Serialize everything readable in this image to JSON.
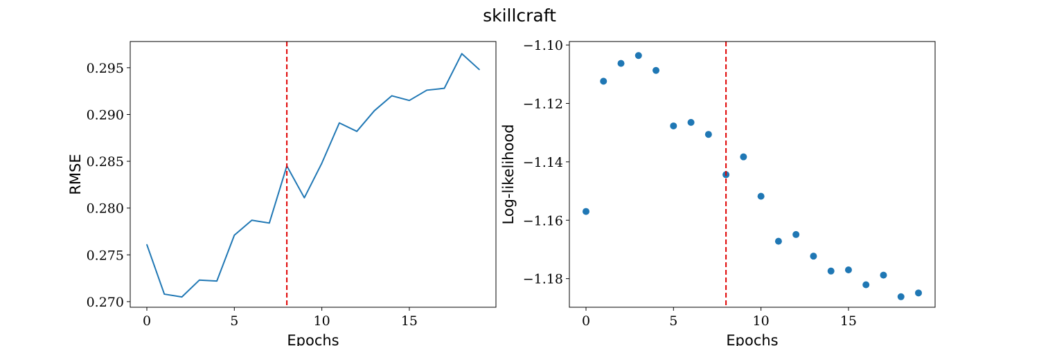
{
  "figure": {
    "title": "skillcraft"
  },
  "chart_data": [
    {
      "type": "line",
      "xlabel": "Epochs",
      "ylabel": "RMSE",
      "x": [
        0,
        1,
        2,
        3,
        4,
        5,
        6,
        7,
        8,
        9,
        10,
        11,
        12,
        13,
        14,
        15,
        16,
        17,
        18,
        19
      ],
      "series": [
        {
          "values": [
            0.2761,
            0.2708,
            0.2705,
            0.2723,
            0.2722,
            0.2771,
            0.2787,
            0.2784,
            0.2845,
            0.2811,
            0.2848,
            0.2891,
            0.2882,
            0.2904,
            0.292,
            0.2915,
            0.2926,
            0.2928,
            0.2965,
            0.2948
          ],
          "color": "#1f77b4"
        }
      ],
      "vline": {
        "x": 8,
        "color": "#e00000",
        "style": "dashed"
      },
      "xlim": [
        -0.95,
        19.95
      ],
      "ylim": [
        0.2694,
        0.2978
      ],
      "xticks": [
        0,
        5,
        10,
        15
      ],
      "xtick_labels": [
        "0",
        "5",
        "10",
        "15"
      ],
      "yticks": [
        0.27,
        0.275,
        0.28,
        0.285,
        0.29,
        0.295
      ],
      "ytick_labels": [
        "0.270",
        "0.275",
        "0.280",
        "0.285",
        "0.290",
        "0.295"
      ],
      "grid": false
    },
    {
      "type": "scatter",
      "xlabel": "Epochs",
      "ylabel": "Log-likelihood",
      "x": [
        0,
        1,
        2,
        3,
        4,
        5,
        6,
        7,
        8,
        9,
        10,
        11,
        12,
        13,
        14,
        15,
        16,
        17,
        18,
        19
      ],
      "series": [
        {
          "values": [
            -1.157,
            -1.1124,
            -1.1063,
            -1.1036,
            -1.1087,
            -1.1277,
            -1.1265,
            -1.1306,
            -1.1444,
            -1.1383,
            -1.1518,
            -1.1672,
            -1.1649,
            -1.1723,
            -1.1774,
            -1.177,
            -1.1821,
            -1.1788,
            -1.1862,
            -1.1849
          ],
          "color": "#1f77b4"
        }
      ],
      "vline": {
        "x": 8,
        "color": "#e00000",
        "style": "dashed"
      },
      "xlim": [
        -0.95,
        19.95
      ],
      "ylim": [
        -1.1898,
        -1.0988
      ],
      "xticks": [
        0,
        5,
        10,
        15
      ],
      "xtick_labels": [
        "0",
        "5",
        "10",
        "15"
      ],
      "yticks": [
        -1.1,
        -1.12,
        -1.14,
        -1.16,
        -1.18
      ],
      "ytick_labels": [
        "−1.10",
        "−1.12",
        "−1.14",
        "−1.16",
        "−1.18"
      ],
      "grid": false
    }
  ]
}
